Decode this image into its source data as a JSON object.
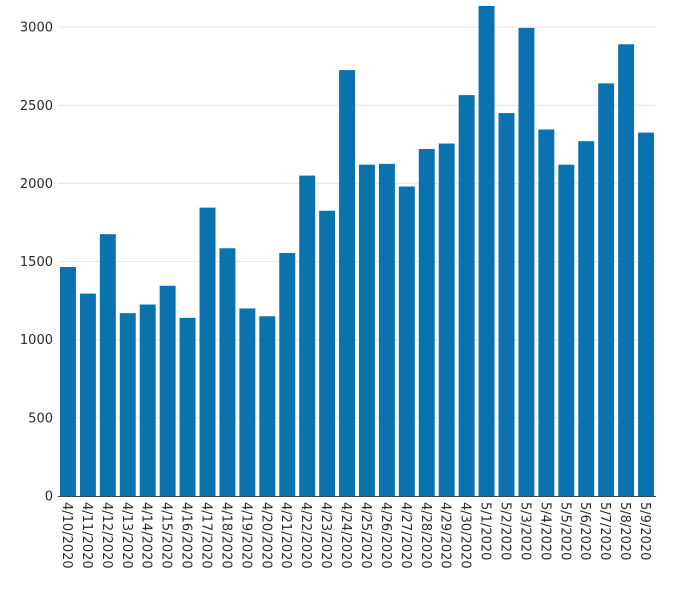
{
  "chart_data": {
    "type": "bar",
    "title": "",
    "xlabel": "",
    "ylabel": "",
    "categories": [
      "4/10/2020",
      "4/11/2020",
      "4/12/2020",
      "4/13/2020",
      "4/14/2020",
      "4/15/2020",
      "4/16/2020",
      "4/17/2020",
      "4/18/2020",
      "4/19/2020",
      "4/20/2020",
      "4/21/2020",
      "4/22/2020",
      "4/23/2020",
      "4/24/2020",
      "4/25/2020",
      "4/26/2020",
      "4/27/2020",
      "4/28/2020",
      "4/29/2020",
      "4/30/2020",
      "5/1/2020",
      "5/2/2020",
      "5/3/2020",
      "5/4/2020",
      "5/5/2020",
      "5/6/2020",
      "5/7/2020",
      "5/8/2020",
      "5/9/2020"
    ],
    "values": [
      1465,
      1295,
      1675,
      1170,
      1225,
      1345,
      1140,
      1845,
      1585,
      1200,
      1150,
      1555,
      2050,
      1825,
      2725,
      2120,
      2125,
      1980,
      2220,
      2255,
      2565,
      3135,
      2450,
      2995,
      2345,
      2120,
      2270,
      2640,
      2890,
      2325
    ],
    "ylim": [
      0,
      3150
    ],
    "yticks": [
      0,
      500,
      1000,
      1500,
      2000,
      2500,
      3000
    ],
    "grid": true,
    "bar_color": "#0b72b0"
  }
}
